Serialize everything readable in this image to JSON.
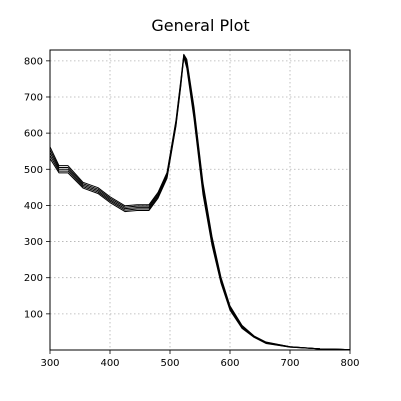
{
  "chart_data": {
    "type": "line",
    "title": "General Plot",
    "xlabel": "",
    "ylabel": "",
    "xlim": [
      300,
      800
    ],
    "ylim": [
      0,
      830
    ],
    "xticks": [
      300,
      400,
      500,
      600,
      700,
      800
    ],
    "yticks": [
      100,
      200,
      300,
      400,
      500,
      600,
      700,
      800
    ],
    "grid": true,
    "legend": "none",
    "line_color": "#000000",
    "background": "#ffffff",
    "series": [
      {
        "x": [
          300,
          315,
          330,
          355,
          380,
          400,
          425,
          445,
          465,
          480,
          495,
          510,
          518,
          523,
          528,
          540,
          555,
          570,
          585,
          600,
          620,
          640,
          660,
          700,
          750,
          800
        ],
        "values": [
          530,
          490,
          490,
          448,
          433,
          408,
          383,
          386,
          386,
          420,
          475,
          620,
          730,
          810,
          780,
          640,
          430,
          290,
          185,
          110,
          60,
          35,
          18,
          8,
          3,
          1
        ]
      },
      {
        "x": [
          300,
          315,
          330,
          355,
          380,
          400,
          425,
          445,
          465,
          480,
          495,
          510,
          518,
          523,
          528,
          540,
          555,
          570,
          585,
          600,
          620,
          640,
          660,
          700,
          750,
          800
        ],
        "values": [
          538,
          495,
          495,
          452,
          437,
          412,
          387,
          390,
          390,
          424,
          479,
          624,
          734,
          812,
          786,
          648,
          438,
          296,
          189,
          113,
          62,
          36,
          19,
          8,
          3,
          1
        ]
      },
      {
        "x": [
          300,
          315,
          330,
          355,
          380,
          400,
          425,
          445,
          465,
          480,
          495,
          510,
          518,
          523,
          528,
          540,
          555,
          570,
          585,
          600,
          620,
          640,
          660,
          700,
          750,
          800
        ],
        "values": [
          546,
          500,
          500,
          456,
          441,
          416,
          391,
          394,
          394,
          428,
          483,
          628,
          738,
          814,
          792,
          656,
          446,
          302,
          193,
          116,
          64,
          37,
          20,
          9,
          3,
          1
        ]
      },
      {
        "x": [
          300,
          315,
          330,
          355,
          380,
          400,
          425,
          445,
          465,
          480,
          495,
          510,
          518,
          523,
          528,
          540,
          555,
          570,
          585,
          600,
          620,
          640,
          660,
          700,
          750,
          800
        ],
        "values": [
          554,
          505,
          505,
          460,
          445,
          420,
          395,
          398,
          398,
          432,
          487,
          632,
          742,
          816,
          798,
          664,
          454,
          308,
          197,
          119,
          66,
          38,
          21,
          9,
          3,
          1
        ]
      },
      {
        "x": [
          300,
          315,
          330,
          355,
          380,
          400,
          425,
          445,
          465,
          480,
          495,
          510,
          518,
          523,
          528,
          540,
          555,
          570,
          585,
          600,
          620,
          640,
          660,
          700,
          750,
          800
        ],
        "values": [
          562,
          510,
          510,
          464,
          449,
          424,
          399,
          402,
          402,
          436,
          491,
          636,
          746,
          818,
          804,
          672,
          462,
          314,
          201,
          122,
          68,
          39,
          22,
          9,
          3,
          1
        ]
      }
    ]
  }
}
